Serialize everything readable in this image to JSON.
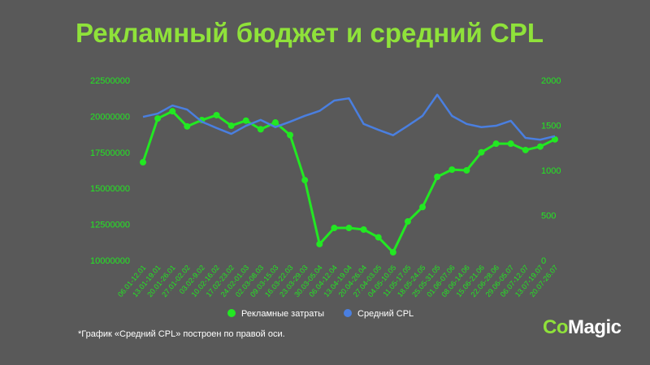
{
  "title": "Рекламный бюджет и средний CPL",
  "footnote": "*График «Средний CPL» построен по правой оси.",
  "logo": {
    "text_co": "Co",
    "text_magic": "Magic"
  },
  "colors": {
    "green": "#22e822",
    "blue": "#4a7fe0",
    "axis_text": "#22e822"
  },
  "chart_data": {
    "type": "line",
    "title": "Рекламный бюджет и средний CPL",
    "categories": [
      "06.01-12.01",
      "13.01-19.01",
      "20.01-26.01",
      "27.01-02.02",
      "03.02-9.02",
      "10.02-16.02",
      "17.02-23.02",
      "24.02-01.03",
      "02.03-08.03",
      "09.03-15.03",
      "16.03-22.03",
      "23.03-29.03",
      "30.03-05.04",
      "06.04-12.04",
      "13.04-19.04",
      "20.04-26.04",
      "27.04-03.05",
      "04.05-10.05",
      "11.05-17.05",
      "18.05-24.05",
      "25.05-31.05",
      "01.06-07.06",
      "08.06-14.06",
      "15.06-21.06",
      "22.06-28.06",
      "29.06-05.07",
      "06.07-12.07",
      "13.07-19.07",
      "20.07-26.07"
    ],
    "left_axis": {
      "ylim": [
        10000000,
        22500000
      ],
      "ticks": [
        "10000000",
        "12500000",
        "15000000",
        "17500000",
        "20000000",
        "22500000"
      ]
    },
    "right_axis": {
      "ylim": [
        0,
        2000
      ],
      "ticks": [
        "0",
        "500",
        "1000",
        "1500",
        "2000"
      ]
    },
    "grid": false,
    "legend": "bottom",
    "series": [
      {
        "name": "Рекламные затраты",
        "axis": "left",
        "color": "#22e822",
        "markers": true,
        "values": [
          16810000,
          19850000,
          20350000,
          19300000,
          19740000,
          20080000,
          19350000,
          19700000,
          19100000,
          19570000,
          18700000,
          15570000,
          11130000,
          12250000,
          12250000,
          12140000,
          11600000,
          10560000,
          12700000,
          13700000,
          15800000,
          16300000,
          16250000,
          17500000,
          18100000,
          18100000,
          17660000,
          17900000,
          18400000
        ]
      },
      {
        "name": "Средний CPL",
        "axis": "right",
        "color": "#4a7fe0",
        "markers": false,
        "values": [
          1594,
          1630,
          1720,
          1675,
          1540,
          1470,
          1405,
          1495,
          1560,
          1480,
          1540,
          1605,
          1660,
          1775,
          1800,
          1515,
          1450,
          1390,
          1495,
          1605,
          1840,
          1605,
          1515,
          1480,
          1495,
          1550,
          1360,
          1340,
          1380
        ]
      }
    ]
  }
}
